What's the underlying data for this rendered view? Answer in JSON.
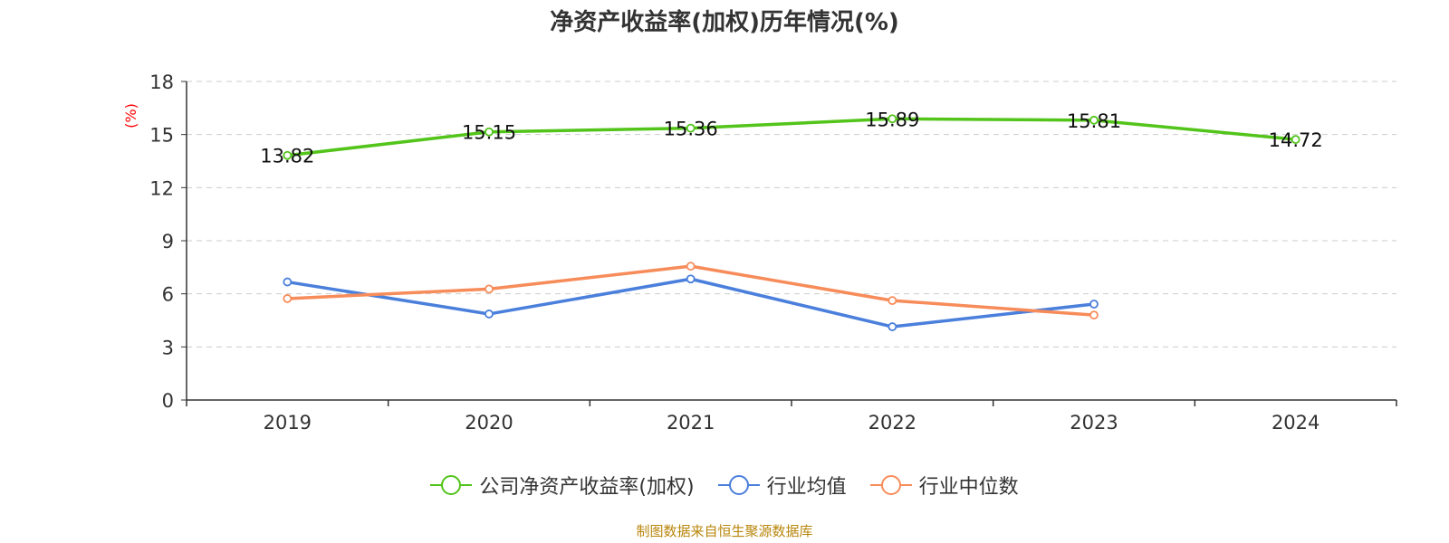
{
  "chart_data": {
    "type": "line",
    "title": "净资产收益率(加权)历年情况(%)",
    "ylabel": "(%)",
    "xlabel": "",
    "categories": [
      "2019",
      "2020",
      "2021",
      "2022",
      "2023",
      "2024"
    ],
    "ylim": [
      0,
      18
    ],
    "yticks": [
      0,
      3,
      6,
      9,
      12,
      15,
      18
    ],
    "grid": true,
    "legend_position": "bottom",
    "series": [
      {
        "name": "公司净资产收益率(加权)",
        "color": "#52c41a",
        "values": [
          13.82,
          15.15,
          15.36,
          15.89,
          15.81,
          14.72
        ],
        "show_labels": true
      },
      {
        "name": "行业均值",
        "color": "#4a7fdc",
        "values": [
          6.67,
          4.86,
          6.84,
          4.14,
          5.42,
          null
        ],
        "show_labels": false
      },
      {
        "name": "行业中位数",
        "color": "#f78c5a",
        "values": [
          5.73,
          6.27,
          7.56,
          5.62,
          4.8,
          null
        ],
        "show_labels": false
      }
    ],
    "axis_color": "#333333",
    "ylabel_color": "#ff0000",
    "grid_color": "#cccccc"
  },
  "source_note": "制图数据来自恒生聚源数据库"
}
